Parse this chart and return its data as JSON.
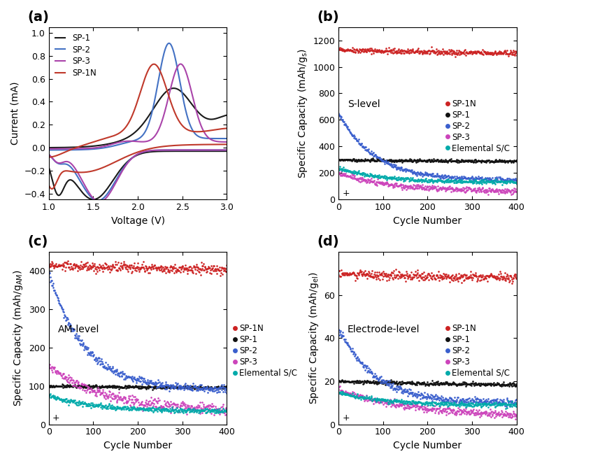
{
  "panel_a": {
    "label": "(a)",
    "xlabel": "Voltage (V)",
    "ylabel": "Current (mA)",
    "xlim": [
      1.0,
      3.0
    ],
    "ylim": [
      -0.45,
      1.05
    ],
    "yticks": [
      -0.4,
      -0.2,
      0.0,
      0.2,
      0.4,
      0.6,
      0.8,
      1.0
    ],
    "xticks": [
      1.0,
      1.5,
      2.0,
      2.5,
      3.0
    ],
    "legend_labels": [
      "SP-1",
      "SP-2",
      "SP-3",
      "SP-1N"
    ],
    "colors_cv": {
      "SP-1": "#1a1a1a",
      "SP-2": "#4472C4",
      "SP-3": "#AA44AA",
      "SP-1N": "#C0392B"
    }
  },
  "panel_b": {
    "label": "(b)",
    "xlabel": "Cycle Number",
    "xlim": [
      0,
      400
    ],
    "ylim": [
      0,
      1300
    ],
    "yticks": [
      0,
      200,
      400,
      600,
      800,
      1000,
      1200
    ],
    "xticks": [
      0,
      100,
      200,
      300,
      400
    ],
    "sublabel": "S-level"
  },
  "panel_c": {
    "label": "(c)",
    "xlabel": "Cycle Number",
    "xlim": [
      0,
      400
    ],
    "ylim": [
      0,
      450
    ],
    "yticks": [
      0,
      100,
      200,
      300,
      400
    ],
    "xticks": [
      0,
      100,
      200,
      300,
      400
    ],
    "sublabel": "AM-level"
  },
  "panel_d": {
    "label": "(d)",
    "xlabel": "Cycle Number",
    "xlim": [
      0,
      400
    ],
    "ylim": [
      0,
      80
    ],
    "yticks": [
      0,
      20,
      40,
      60
    ],
    "xticks": [
      0,
      100,
      200,
      300,
      400
    ],
    "sublabel": "Electrode-level"
  },
  "colors": {
    "SP-1N": "#CC2222",
    "SP-1": "#111111",
    "SP-2": "#3A5FCD",
    "SP-3": "#CC44BB",
    "Elemental S/C": "#00AAAA"
  },
  "legend_labels": [
    "SP-1N",
    "SP-1",
    "SP-2",
    "SP-3",
    "Elemental S/C"
  ]
}
